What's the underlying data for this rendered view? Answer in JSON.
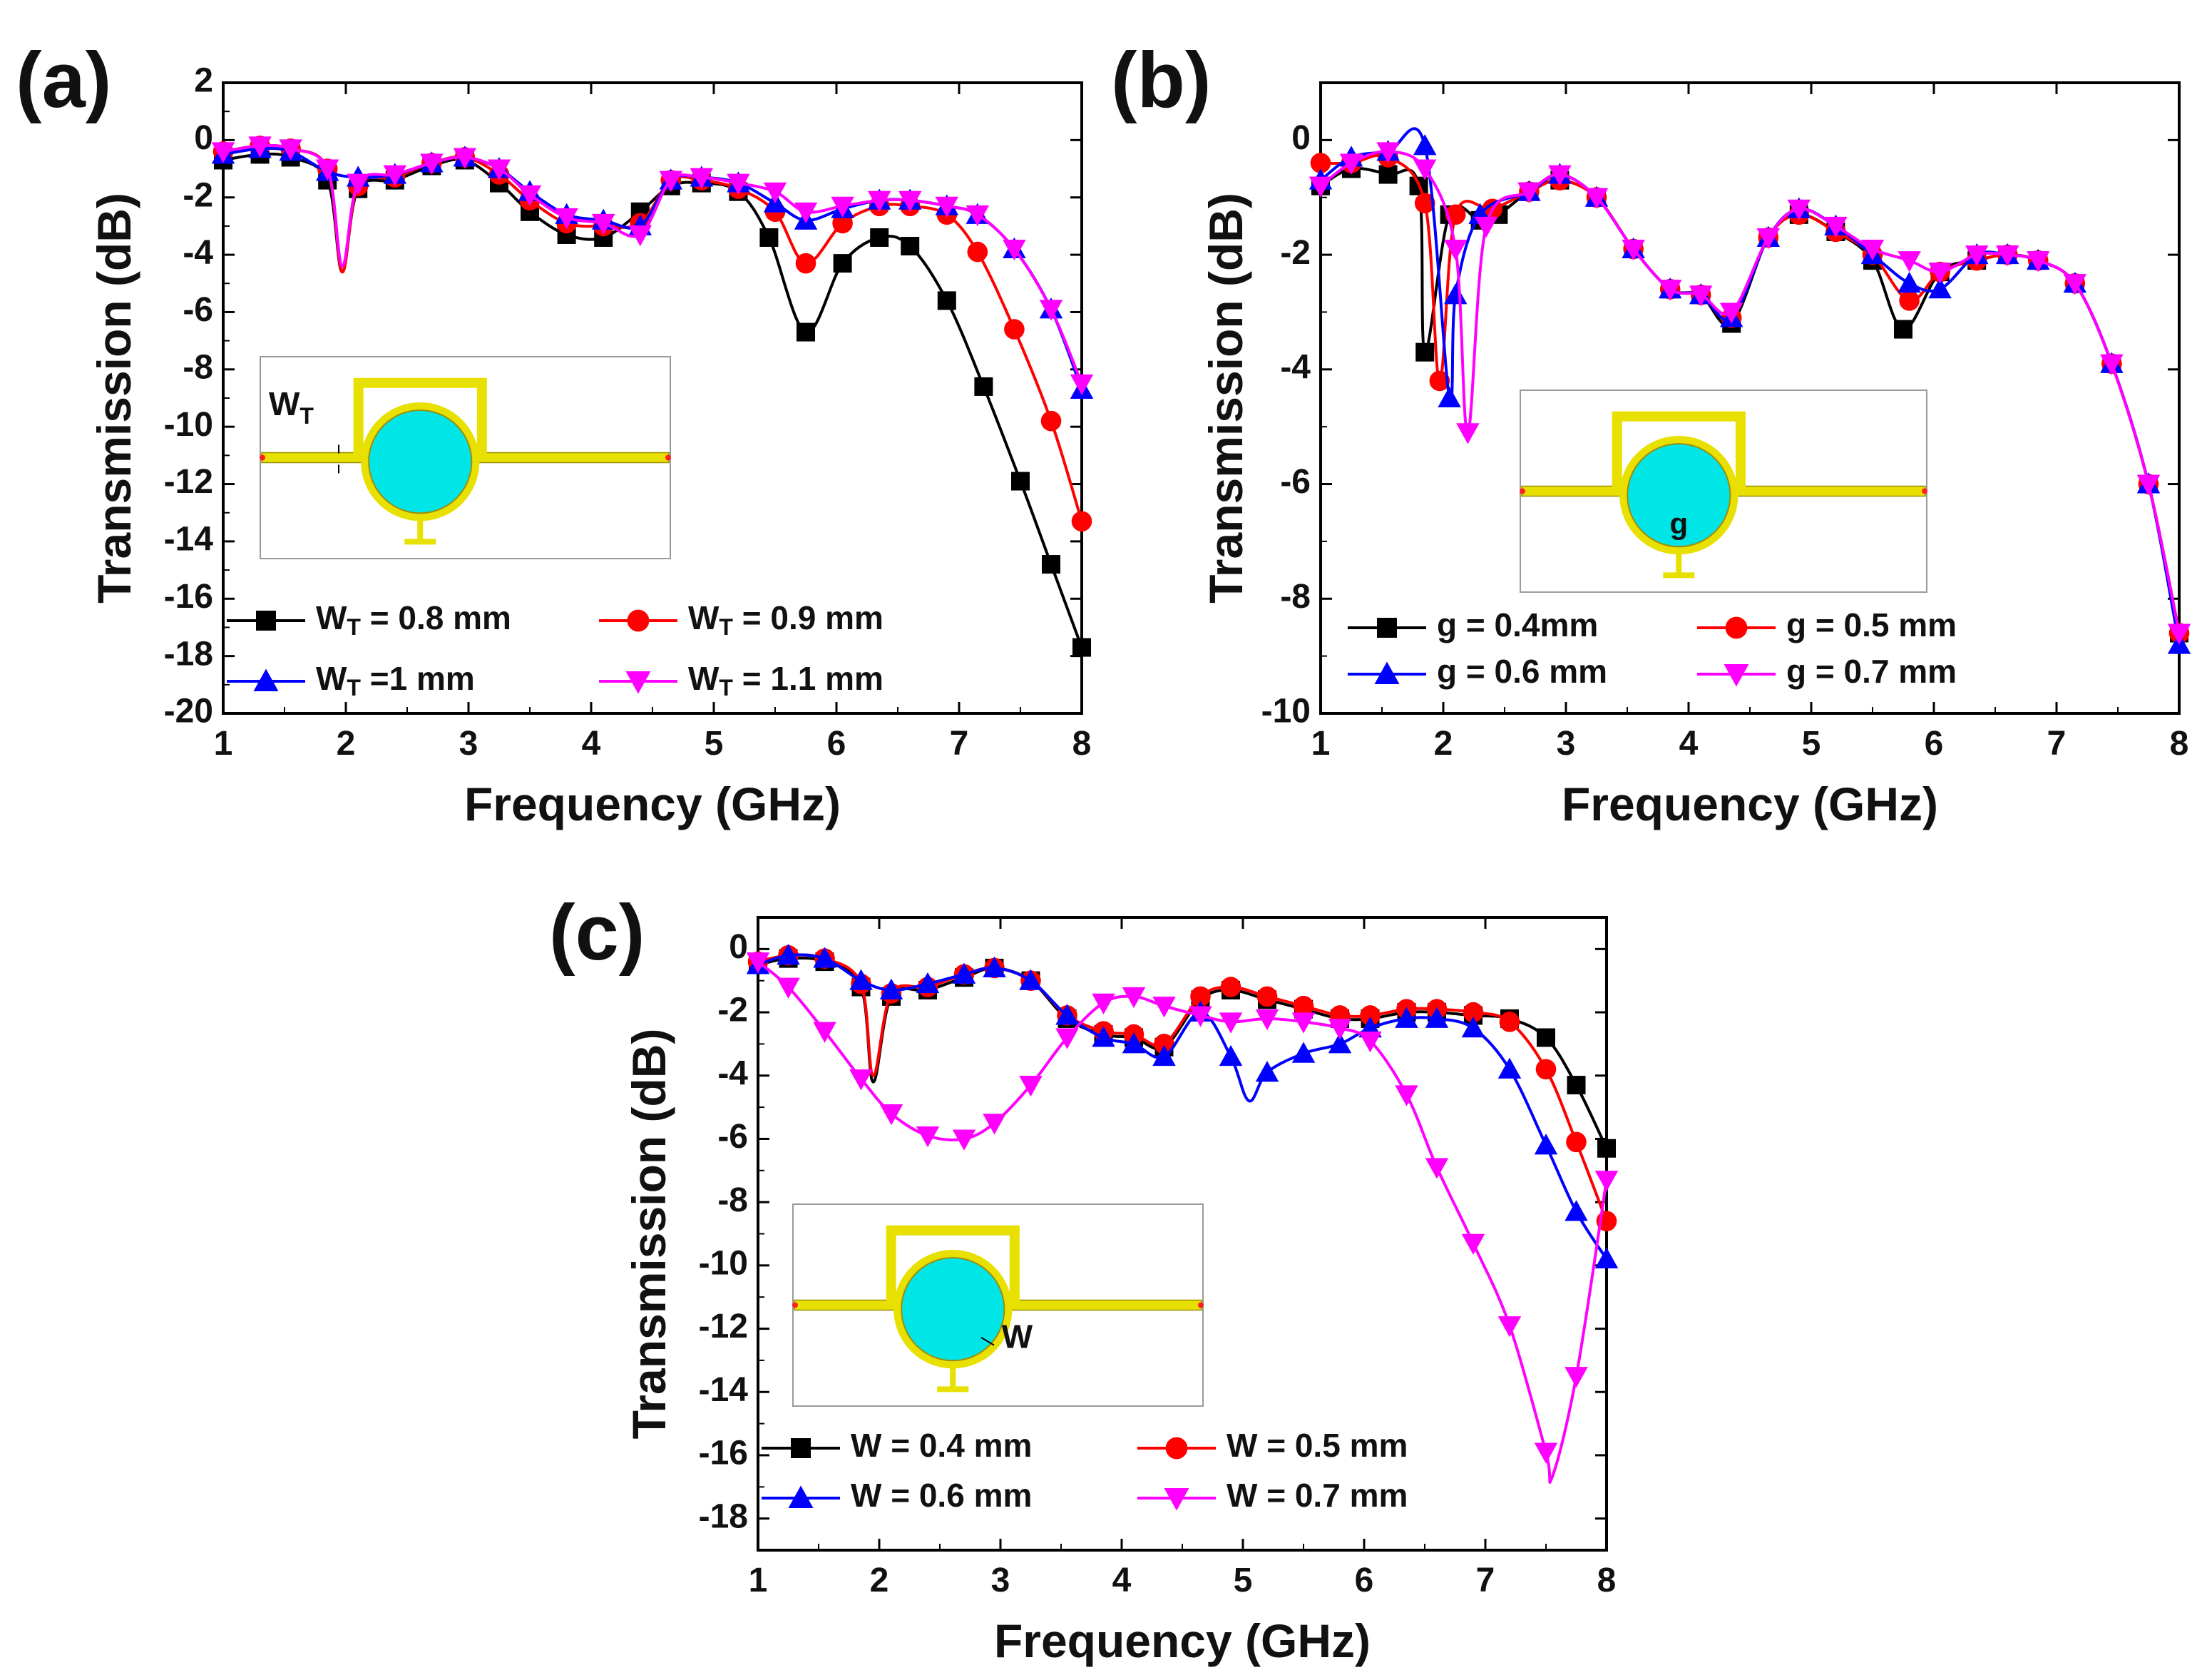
{
  "chart_data": [
    {
      "type": "line",
      "panel_label": "(a)",
      "xlabel": "Frequency (GHz)",
      "ylabel": "Transmission (dB)",
      "xlim": [
        1,
        8
      ],
      "ylim": [
        -20,
        2
      ],
      "xticks": [
        1,
        2,
        3,
        4,
        5,
        6,
        7,
        8
      ],
      "yticks": [
        2,
        0,
        -2,
        -4,
        -6,
        -8,
        -10,
        -12,
        -14,
        -16,
        -18,
        -20
      ],
      "inset_label": "W",
      "inset_label_sub": "T",
      "series": [
        {
          "name": "W",
          "sub": "T",
          "suffix": " = 0.8 mm",
          "color": "#000000",
          "marker": "square",
          "x": [
            1.0,
            1.3,
            1.55,
            1.85,
            1.97,
            2.1,
            2.4,
            2.7,
            2.97,
            3.25,
            3.5,
            3.8,
            4.1,
            4.4,
            4.65,
            4.9,
            5.2,
            5.45,
            5.75,
            6.05,
            6.35,
            6.6,
            6.9,
            7.2,
            7.5,
            7.75,
            8.0
          ],
          "y": [
            -0.7,
            -0.5,
            -0.6,
            -1.4,
            -4.6,
            -1.7,
            -1.4,
            -0.9,
            -0.7,
            -1.5,
            -2.5,
            -3.3,
            -3.4,
            -2.5,
            -1.6,
            -1.5,
            -1.8,
            -3.4,
            -6.7,
            -4.3,
            -3.4,
            -3.7,
            -5.6,
            -8.6,
            -11.9,
            -14.8,
            -17.7
          ],
          "mx": [
            1.0,
            1.3,
            1.55,
            1.85,
            2.1,
            2.4,
            2.7,
            2.97,
            3.25,
            3.5,
            3.8,
            4.1,
            4.4,
            4.65,
            4.9,
            5.2,
            5.45,
            5.75,
            6.05,
            6.35,
            6.6,
            6.9,
            7.2,
            7.5,
            7.75,
            8.0
          ]
        },
        {
          "name": "W",
          "sub": "T",
          "suffix": " = 0.9 mm",
          "color": "#ff0000",
          "marker": "circle",
          "x": [
            1.0,
            1.3,
            1.55,
            1.85,
            1.97,
            2.1,
            2.4,
            2.7,
            2.97,
            3.25,
            3.5,
            3.8,
            4.1,
            4.4,
            4.65,
            4.9,
            5.2,
            5.5,
            5.75,
            6.05,
            6.35,
            6.6,
            6.9,
            7.15,
            7.45,
            7.75,
            8.0
          ],
          "y": [
            -0.4,
            -0.2,
            -0.3,
            -1.0,
            -4.6,
            -1.6,
            -1.3,
            -0.8,
            -0.6,
            -1.2,
            -2.1,
            -2.9,
            -3.0,
            -2.9,
            -1.4,
            -1.4,
            -1.7,
            -2.5,
            -4.3,
            -2.9,
            -2.3,
            -2.3,
            -2.6,
            -3.9,
            -6.6,
            -9.8,
            -13.3
          ],
          "mx": [
            1.0,
            1.3,
            1.55,
            1.85,
            2.1,
            2.4,
            2.7,
            2.97,
            3.25,
            3.5,
            3.8,
            4.1,
            4.4,
            4.65,
            4.9,
            5.2,
            5.5,
            5.75,
            6.05,
            6.35,
            6.6,
            6.9,
            7.15,
            7.45,
            7.75,
            8.0
          ]
        },
        {
          "name": "W",
          "sub": "T",
          "suffix": " =1 mm",
          "color": "#0000ff",
          "marker": "triangle-up",
          "x": [
            1.0,
            1.3,
            1.55,
            1.85,
            2.1,
            2.4,
            2.7,
            2.97,
            3.25,
            3.5,
            3.8,
            4.1,
            4.4,
            4.65,
            4.9,
            5.2,
            5.5,
            5.75,
            6.05,
            6.35,
            6.6,
            6.9,
            7.15,
            7.45,
            7.75,
            8.0
          ],
          "y": [
            -0.5,
            -0.3,
            -0.4,
            -1.1,
            -1.3,
            -1.2,
            -0.8,
            -0.6,
            -1.0,
            -1.8,
            -2.6,
            -2.8,
            -3.0,
            -1.4,
            -1.3,
            -1.5,
            -2.2,
            -2.8,
            -2.4,
            -2.1,
            -2.1,
            -2.3,
            -2.6,
            -3.8,
            -5.9,
            -8.7
          ]
        },
        {
          "name": "W",
          "sub": "T",
          "suffix": " = 1.1 mm",
          "color": "#ff00ff",
          "marker": "triangle-down",
          "x": [
            1.0,
            1.3,
            1.55,
            1.85,
            1.97,
            2.1,
            2.4,
            2.7,
            2.97,
            3.25,
            3.5,
            3.8,
            4.1,
            4.4,
            4.65,
            4.9,
            5.2,
            5.5,
            5.75,
            6.05,
            6.35,
            6.6,
            6.9,
            7.15,
            7.45,
            7.75,
            8.0
          ],
          "y": [
            -0.4,
            -0.2,
            -0.3,
            -1.0,
            -4.4,
            -1.5,
            -1.2,
            -0.8,
            -0.6,
            -1.0,
            -1.9,
            -2.7,
            -2.9,
            -3.3,
            -1.4,
            -1.3,
            -1.5,
            -1.8,
            -2.5,
            -2.3,
            -2.1,
            -2.1,
            -2.3,
            -2.6,
            -3.8,
            -5.9,
            -8.5
          ],
          "mx": [
            1.0,
            1.3,
            1.55,
            1.85,
            2.1,
            2.4,
            2.7,
            2.97,
            3.25,
            3.5,
            3.8,
            4.1,
            4.4,
            4.65,
            4.9,
            5.2,
            5.5,
            5.75,
            6.05,
            6.35,
            6.6,
            6.9,
            7.15,
            7.45,
            7.75,
            8.0
          ]
        }
      ]
    },
    {
      "type": "line",
      "panel_label": "(b)",
      "xlabel": "Frequency (GHz)",
      "ylabel": "Transmission (dB)",
      "xlim": [
        1,
        8
      ],
      "ylim": [
        -10,
        1
      ],
      "xticks": [
        1,
        2,
        3,
        4,
        5,
        6,
        7,
        8
      ],
      "yticks": [
        0,
        -2,
        -4,
        -6,
        -8,
        -10
      ],
      "inset_label": "g",
      "series": [
        {
          "name": "g = 0.4mm",
          "color": "#000000",
          "marker": "square",
          "x": [
            1.0,
            1.25,
            1.55,
            1.8,
            1.85,
            2.05,
            2.3,
            2.45,
            2.7,
            2.95,
            3.25,
            3.55,
            3.85,
            4.1,
            4.35,
            4.65,
            4.9,
            5.2,
            5.5,
            5.75,
            6.05,
            6.35,
            6.6,
            6.85,
            7.15,
            7.45,
            7.75,
            8.0
          ],
          "y": [
            -0.8,
            -0.5,
            -0.6,
            -0.8,
            -3.7,
            -1.3,
            -1.4,
            -1.3,
            -0.9,
            -0.7,
            -1.0,
            -1.9,
            -2.6,
            -2.7,
            -3.2,
            -1.7,
            -1.3,
            -1.6,
            -2.1,
            -3.3,
            -2.3,
            -2.1,
            -2.0,
            -2.1,
            -2.5,
            -3.9,
            -6.0,
            -8.6
          ]
        },
        {
          "name": "g = 0.5 mm",
          "color": "#ff0000",
          "marker": "circle",
          "x": [
            1.0,
            1.25,
            1.55,
            1.85,
            1.97,
            2.1,
            2.4,
            2.7,
            2.95,
            3.25,
            3.55,
            3.85,
            4.1,
            4.35,
            4.65,
            4.9,
            5.2,
            5.5,
            5.8,
            6.05,
            6.35,
            6.6,
            6.85,
            7.15,
            7.45,
            7.75,
            8.0
          ],
          "y": [
            -0.4,
            -0.4,
            -0.3,
            -1.1,
            -4.2,
            -1.3,
            -1.2,
            -0.9,
            -0.7,
            -1.0,
            -1.9,
            -2.6,
            -2.7,
            -3.1,
            -1.7,
            -1.3,
            -1.6,
            -2.0,
            -2.8,
            -2.3,
            -2.1,
            -2.0,
            -2.1,
            -2.5,
            -3.9,
            -6.0,
            -8.6
          ]
        },
        {
          "name": "g = 0.6 mm",
          "color": "#0000ff",
          "marker": "triangle-up",
          "x": [
            1.0,
            1.25,
            1.55,
            1.85,
            2.05,
            2.1,
            2.3,
            2.7,
            2.95,
            3.25,
            3.55,
            3.85,
            4.1,
            4.35,
            4.65,
            4.9,
            5.2,
            5.5,
            5.8,
            6.05,
            6.35,
            6.6,
            6.85,
            7.15,
            7.45,
            7.75,
            8.0
          ],
          "y": [
            -0.7,
            -0.3,
            -0.2,
            -0.1,
            -4.5,
            -2.7,
            -1.3,
            -0.9,
            -0.6,
            -1.0,
            -1.9,
            -2.6,
            -2.7,
            -3.1,
            -1.7,
            -1.2,
            -1.5,
            -2.0,
            -2.5,
            -2.6,
            -2.0,
            -2.0,
            -2.1,
            -2.5,
            -3.9,
            -6.0,
            -8.8
          ]
        },
        {
          "name": "g = 0.7 mm",
          "color": "#ff00ff",
          "marker": "triangle-down",
          "x": [
            1.0,
            1.25,
            1.55,
            1.85,
            2.1,
            2.2,
            2.35,
            2.7,
            2.95,
            3.25,
            3.55,
            3.85,
            4.1,
            4.35,
            4.65,
            4.9,
            5.2,
            5.5,
            5.8,
            6.05,
            6.35,
            6.6,
            6.85,
            7.15,
            7.45,
            7.75,
            8.0
          ],
          "y": [
            -0.8,
            -0.4,
            -0.2,
            -0.5,
            -1.9,
            -5.1,
            -1.5,
            -0.9,
            -0.6,
            -1.0,
            -1.9,
            -2.6,
            -2.7,
            -3.0,
            -1.7,
            -1.2,
            -1.5,
            -1.9,
            -2.1,
            -2.3,
            -2.0,
            -2.0,
            -2.1,
            -2.5,
            -3.9,
            -6.0,
            -8.6
          ]
        }
      ]
    },
    {
      "type": "line",
      "panel_label": "(c)",
      "xlabel": "Frequency (GHz)",
      "ylabel": "Transmission (dB)",
      "xlim": [
        1,
        8
      ],
      "ylim": [
        -19,
        1
      ],
      "xticks": [
        1,
        2,
        3,
        4,
        5,
        6,
        7,
        8
      ],
      "yticks": [
        0,
        -2,
        -4,
        -6,
        -8,
        -10,
        -12,
        -14,
        -16,
        -18
      ],
      "inset_label": "W",
      "series": [
        {
          "name": "W = 0.4 mm",
          "color": "#000000",
          "marker": "square",
          "x": [
            1.0,
            1.25,
            1.55,
            1.85,
            1.95,
            2.1,
            2.4,
            2.7,
            2.95,
            3.25,
            3.55,
            3.85,
            4.1,
            4.35,
            4.65,
            4.9,
            5.2,
            5.5,
            5.8,
            6.05,
            6.35,
            6.6,
            6.9,
            7.2,
            7.5,
            7.75,
            8.0
          ],
          "y": [
            -0.5,
            -0.3,
            -0.4,
            -1.2,
            -4.2,
            -1.5,
            -1.3,
            -0.9,
            -0.6,
            -1.0,
            -2.2,
            -2.7,
            -2.8,
            -3.1,
            -1.6,
            -1.3,
            -1.6,
            -1.9,
            -2.2,
            -2.2,
            -2.0,
            -2.0,
            -2.1,
            -2.2,
            -2.8,
            -4.3,
            -6.3
          ],
          "mx": [
            1.0,
            1.25,
            1.55,
            1.85,
            2.1,
            2.4,
            2.7,
            2.95,
            3.25,
            3.55,
            3.85,
            4.1,
            4.35,
            4.65,
            4.9,
            5.2,
            5.5,
            5.8,
            6.05,
            6.35,
            6.6,
            6.9,
            7.2,
            7.5,
            7.75,
            8.0
          ]
        },
        {
          "name": "W = 0.5 mm",
          "color": "#ff0000",
          "marker": "circle",
          "x": [
            1.0,
            1.25,
            1.55,
            1.85,
            1.95,
            2.1,
            2.4,
            2.7,
            2.95,
            3.25,
            3.55,
            3.85,
            4.1,
            4.35,
            4.65,
            4.9,
            5.2,
            5.5,
            5.8,
            6.05,
            6.35,
            6.6,
            6.9,
            7.2,
            7.5,
            7.75,
            8.0
          ],
          "y": [
            -0.4,
            -0.2,
            -0.3,
            -1.1,
            -4.0,
            -1.4,
            -1.2,
            -0.8,
            -0.6,
            -1.0,
            -2.1,
            -2.6,
            -2.7,
            -3.0,
            -1.5,
            -1.2,
            -1.5,
            -1.8,
            -2.1,
            -2.1,
            -1.9,
            -1.9,
            -2.0,
            -2.3,
            -3.8,
            -6.1,
            -8.6
          ],
          "mx": [
            1.0,
            1.25,
            1.55,
            1.85,
            2.1,
            2.4,
            2.7,
            2.95,
            3.25,
            3.55,
            3.85,
            4.1,
            4.35,
            4.65,
            4.9,
            5.2,
            5.5,
            5.8,
            6.05,
            6.35,
            6.6,
            6.9,
            7.2,
            7.5,
            7.75,
            8.0
          ]
        },
        {
          "name": "W = 0.6 mm",
          "color": "#0000ff",
          "marker": "triangle-up",
          "x": [
            1.0,
            1.25,
            1.55,
            1.85,
            2.1,
            2.4,
            2.7,
            2.95,
            3.25,
            3.55,
            3.85,
            4.1,
            4.35,
            4.65,
            4.9,
            5.05,
            5.2,
            5.5,
            5.8,
            6.05,
            6.35,
            6.6,
            6.9,
            7.2,
            7.5,
            7.75,
            8.0
          ],
          "y": [
            -0.5,
            -0.2,
            -0.3,
            -1.0,
            -1.3,
            -1.1,
            -0.8,
            -0.6,
            -1.0,
            -2.1,
            -2.8,
            -3.0,
            -3.4,
            -2.0,
            -3.4,
            -4.8,
            -3.9,
            -3.3,
            -3.0,
            -2.5,
            -2.2,
            -2.2,
            -2.5,
            -3.8,
            -6.2,
            -8.3,
            -9.8
          ],
          "mx": [
            1.0,
            1.25,
            1.55,
            1.85,
            2.1,
            2.4,
            2.7,
            2.95,
            3.25,
            3.55,
            3.85,
            4.1,
            4.35,
            4.65,
            4.9,
            5.2,
            5.5,
            5.8,
            6.05,
            6.35,
            6.6,
            6.9,
            7.2,
            7.5,
            7.75,
            8.0
          ]
        },
        {
          "name": "W = 0.7 mm",
          "color": "#ff00ff",
          "marker": "triangle-down",
          "x": [
            1.0,
            1.25,
            1.55,
            1.85,
            2.1,
            2.4,
            2.7,
            2.95,
            3.25,
            3.55,
            3.85,
            4.1,
            4.35,
            4.65,
            4.9,
            5.2,
            5.5,
            5.8,
            6.05,
            6.35,
            6.6,
            6.9,
            7.2,
            7.5,
            7.55,
            7.75,
            8.0
          ],
          "y": [
            -0.4,
            -1.2,
            -2.6,
            -4.1,
            -5.2,
            -5.9,
            -6.0,
            -5.5,
            -4.3,
            -2.8,
            -1.7,
            -1.5,
            -1.8,
            -2.1,
            -2.3,
            -2.2,
            -2.3,
            -2.5,
            -2.9,
            -4.6,
            -6.9,
            -9.3,
            -11.9,
            -15.9,
            -16.7,
            -13.5,
            -7.3
          ],
          "mx": [
            1.0,
            1.25,
            1.55,
            1.85,
            2.1,
            2.4,
            2.7,
            2.95,
            3.25,
            3.55,
            3.85,
            4.1,
            4.35,
            4.65,
            4.9,
            5.2,
            5.5,
            5.8,
            6.05,
            6.35,
            6.6,
            6.9,
            7.2,
            7.5,
            7.75,
            8.0
          ]
        }
      ]
    }
  ]
}
